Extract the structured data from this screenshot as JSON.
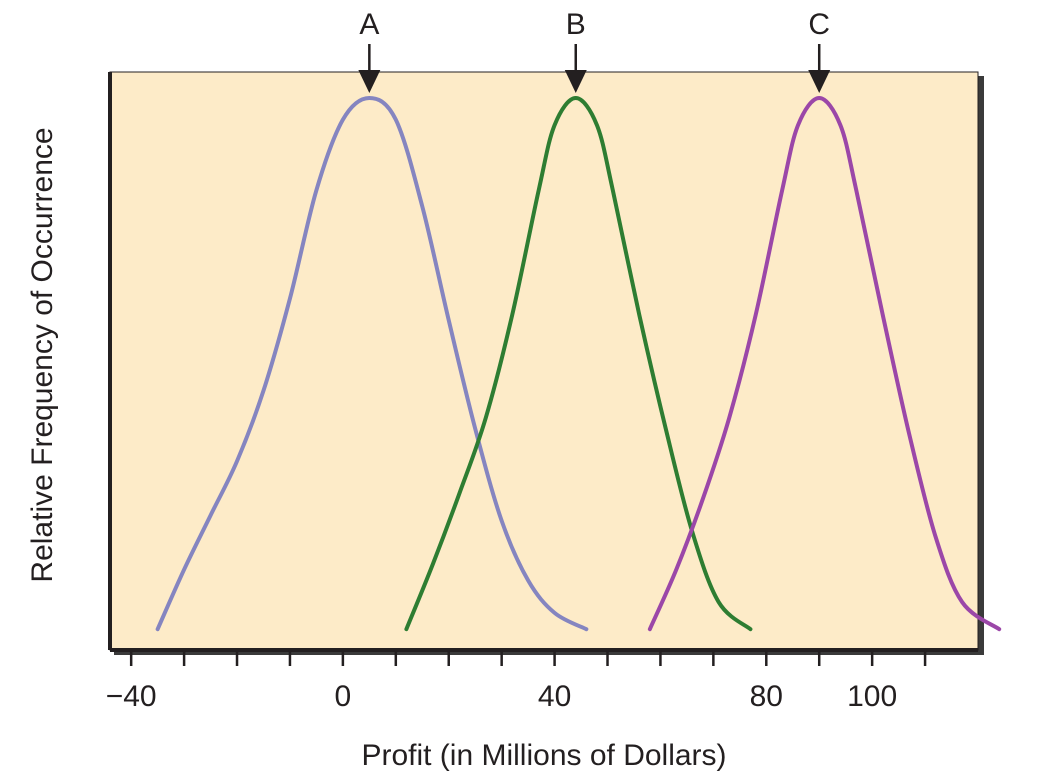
{
  "chart_data": {
    "type": "line",
    "title": "",
    "xlabel": "Profit (in Millions of Dollars)",
    "ylabel": "Relative Frequency of Occurrence",
    "xlim": [
      -44,
      120
    ],
    "ylim": [
      0,
      1
    ],
    "x_tick_labels": [
      {
        "value": -40,
        "label": "−40"
      },
      {
        "value": 0,
        "label": "0"
      },
      {
        "value": 40,
        "label": "40"
      },
      {
        "value": 80,
        "label": "80"
      },
      {
        "value": 100,
        "label": "100"
      }
    ],
    "x_minor_ticks": [
      -30,
      -20,
      -10,
      10,
      20,
      30,
      50,
      60,
      70,
      90,
      110
    ],
    "grid": false,
    "background_color": "#fdebc8",
    "series": [
      {
        "marker": "A",
        "color": "#8585c0",
        "peak_x": 5,
        "x": [
          -35,
          -30,
          -25,
          -20,
          -15,
          -10,
          -5,
          0,
          5,
          10,
          15,
          20,
          25,
          30,
          35,
          40,
          46
        ],
        "y": [
          0.02,
          0.13,
          0.23,
          0.33,
          0.46,
          0.63,
          0.83,
          0.96,
          1.0,
          0.96,
          0.8,
          0.59,
          0.39,
          0.22,
          0.11,
          0.05,
          0.02
        ]
      },
      {
        "marker": "B",
        "color": "#2e7d32",
        "peak_x": 44,
        "x": [
          12,
          17,
          22,
          27,
          32,
          37,
          40,
          44,
          48,
          51,
          56,
          61,
          66,
          71,
          77
        ],
        "y": [
          0.02,
          0.14,
          0.27,
          0.41,
          0.6,
          0.83,
          0.95,
          1.0,
          0.95,
          0.83,
          0.6,
          0.39,
          0.2,
          0.07,
          0.02
        ]
      },
      {
        "marker": "C",
        "color": "#9b47a8",
        "peak_x": 90,
        "x": [
          58,
          63,
          68,
          73,
          78,
          83,
          86,
          90,
          94,
          97,
          102,
          107,
          112,
          117,
          124
        ],
        "y": [
          0.02,
          0.13,
          0.26,
          0.41,
          0.6,
          0.83,
          0.95,
          1.0,
          0.95,
          0.83,
          0.6,
          0.38,
          0.19,
          0.07,
          0.02
        ]
      }
    ]
  }
}
